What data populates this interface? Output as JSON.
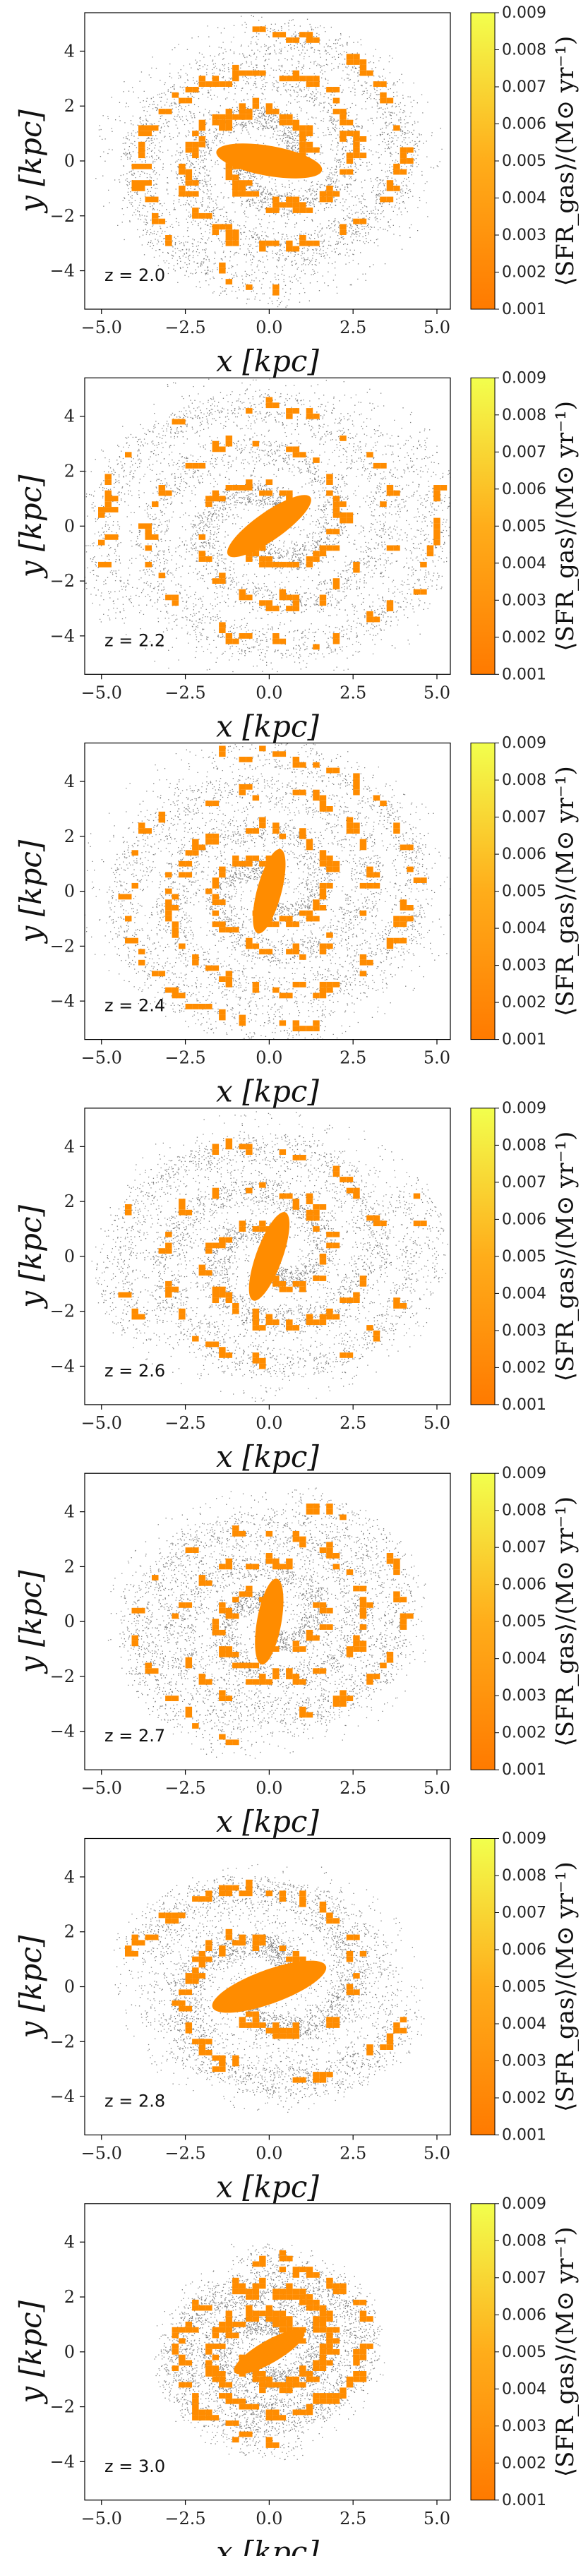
{
  "chart_data": {
    "type": "scatter",
    "description_units": "positions in kpc",
    "panels": [
      {
        "redshift_label": "z = 2.0",
        "xlim": [
          -5.5,
          5.4
        ],
        "ylim": [
          -5.4,
          5.4
        ],
        "xticks": [
          "−5.0",
          "−2.5",
          "0.0",
          "2.5",
          "5.0"
        ],
        "yticks": [
          "4",
          "2",
          "0",
          "−2",
          "−4"
        ],
        "disk_radius": 4.2,
        "arm_turns": 1.3,
        "bar_angle": -10,
        "bar_length": 1.6,
        "orange_density": 0.55
      },
      {
        "redshift_label": "z = 2.2",
        "xlim": [
          -5.5,
          5.4
        ],
        "ylim": [
          -5.4,
          5.4
        ],
        "xticks": [
          "−5.0",
          "−2.5",
          "0.0",
          "2.5",
          "5.0"
        ],
        "yticks": [
          "4",
          "2",
          "0",
          "−2",
          "−4"
        ],
        "disk_radius": 4.8,
        "arm_turns": 1.5,
        "bar_angle": 35,
        "bar_length": 1.5,
        "orange_density": 0.45
      },
      {
        "redshift_label": "z = 2.4",
        "xlim": [
          -5.5,
          5.4
        ],
        "ylim": [
          -5.4,
          5.4
        ],
        "xticks": [
          "−5.0",
          "−2.5",
          "0.0",
          "2.5",
          "5.0"
        ],
        "yticks": [
          "4",
          "2",
          "0",
          "−2",
          "−4"
        ],
        "disk_radius": 4.6,
        "arm_turns": 1.6,
        "bar_angle": 75,
        "bar_length": 1.3,
        "orange_density": 0.5
      },
      {
        "redshift_label": "z = 2.6",
        "xlim": [
          -5.5,
          5.4
        ],
        "ylim": [
          -5.4,
          5.4
        ],
        "xticks": [
          "−5.0",
          "−2.5",
          "0.0",
          "2.5",
          "5.0"
        ],
        "yticks": [
          "4",
          "2",
          "0",
          "−2",
          "−4"
        ],
        "disk_radius": 4.3,
        "arm_turns": 1.4,
        "bar_angle": 70,
        "bar_length": 1.4,
        "orange_density": 0.3
      },
      {
        "redshift_label": "z = 2.7",
        "xlim": [
          -5.5,
          5.4
        ],
        "ylim": [
          -5.4,
          5.4
        ],
        "xticks": [
          "−5.0",
          "−2.5",
          "0.0",
          "2.5",
          "5.0"
        ],
        "yticks": [
          "4",
          "2",
          "0",
          "−2",
          "−4"
        ],
        "disk_radius": 3.9,
        "arm_turns": 1.5,
        "bar_angle": 80,
        "bar_length": 1.3,
        "orange_density": 0.35
      },
      {
        "redshift_label": "z = 2.8",
        "xlim": [
          -5.5,
          5.4
        ],
        "ylim": [
          -5.4,
          5.4
        ],
        "xticks": [
          "−5.0",
          "−2.5",
          "0.0",
          "2.5",
          "5.0"
        ],
        "yticks": [
          "4",
          "2",
          "0",
          "−2",
          "−4"
        ],
        "disk_radius": 3.7,
        "arm_turns": 0.9,
        "bar_angle": 20,
        "bar_length": 1.8,
        "orange_density": 0.4
      },
      {
        "redshift_label": "z = 3.0",
        "xlim": [
          -5.5,
          5.4
        ],
        "ylim": [
          -5.4,
          5.4
        ],
        "xticks": [
          "−5.0",
          "−2.5",
          "0.0",
          "2.5",
          "5.0"
        ],
        "yticks": [
          "4",
          "2",
          "0",
          "−2",
          "−4"
        ],
        "disk_radius": 2.8,
        "arm_turns": 1.2,
        "bar_angle": 30,
        "bar_length": 1.2,
        "orange_density": 0.6
      }
    ],
    "xlabel": "x [kpc]",
    "ylabel": "y [kpc]",
    "colorbar": {
      "label": "⟨SFR_gas⟩/(M⊙ yr⁻¹)",
      "range": [
        0.001,
        0.009
      ],
      "ticks": [
        "0.009",
        "0.008",
        "0.007",
        "0.006",
        "0.005",
        "0.004",
        "0.003",
        "0.002",
        "0.001"
      ],
      "color_low": "#ff7a00",
      "color_high": "#f2ff4d"
    },
    "colors": {
      "stars": "#1a1a1a",
      "sfr": "#ff8c00"
    }
  }
}
